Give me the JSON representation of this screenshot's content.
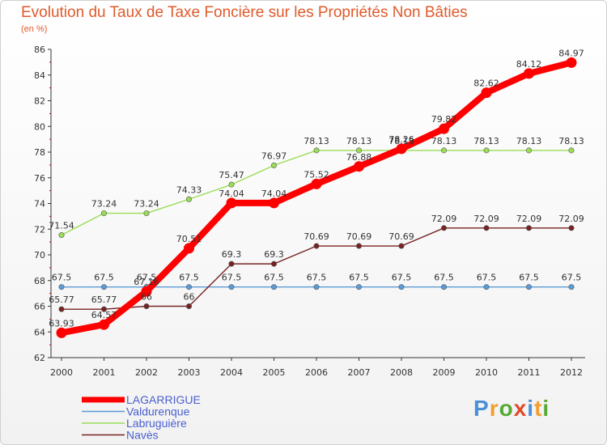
{
  "chart_data": {
    "type": "line",
    "title": "Evolution du Taux de Taxe Foncière sur les Propriétés Non Bâties",
    "ylabel": "(en %)",
    "xlabel": "",
    "categories": [
      "2000",
      "2001",
      "2002",
      "2003",
      "2004",
      "2005",
      "2006",
      "2007",
      "2008",
      "2009",
      "2010",
      "2011",
      "2012"
    ],
    "ylim": [
      62,
      86
    ],
    "yticks": [
      62,
      64,
      66,
      68,
      70,
      72,
      74,
      76,
      78,
      80,
      82,
      84,
      86
    ],
    "grid": false,
    "legend_position": "bottom-left",
    "series": [
      {
        "name": "LAGARRIGUE",
        "color": "#ff0000",
        "values": [
          63.93,
          64.57,
          67.16,
          70.51,
          74.04,
          74.04,
          75.52,
          76.88,
          78.26,
          79.82,
          82.62,
          84.12,
          84.97
        ],
        "labels": [
          "63.93",
          "64.57",
          "67.16",
          "70.51",
          "74.04",
          "74.04",
          "75.52",
          "76.88",
          "78.26",
          "79.82",
          "82.62",
          "84.12",
          "84.97"
        ]
      },
      {
        "name": "Valdurenque",
        "color": "#5b9bd5",
        "values": [
          67.5,
          67.5,
          67.5,
          67.5,
          67.5,
          67.5,
          67.5,
          67.5,
          67.5,
          67.5,
          67.5,
          67.5,
          67.5
        ],
        "labels": [
          "67.5",
          "67.5",
          "67.5",
          "67.5",
          "67.5",
          "67.5",
          "67.5",
          "67.5",
          "67.5",
          "67.5",
          "67.5",
          "67.5",
          "67.5"
        ]
      },
      {
        "name": "Labruguière",
        "color": "#99dd55",
        "values": [
          71.54,
          73.24,
          73.24,
          74.33,
          75.47,
          76.97,
          78.13,
          78.13,
          78.13,
          78.13,
          78.13,
          78.13,
          78.13
        ],
        "labels": [
          "71.54",
          "73.24",
          "73.24",
          "74.33",
          "75.47",
          "76.97",
          "78.13",
          "78.13",
          "78.13",
          "78.13",
          "78.13",
          "78.13",
          "78.13"
        ]
      },
      {
        "name": "Navès",
        "color": "#772222",
        "values": [
          65.77,
          65.77,
          66,
          66,
          69.3,
          69.3,
          70.69,
          70.69,
          70.69,
          72.09,
          72.09,
          72.09,
          72.09
        ],
        "labels": [
          "65.77",
          "65.77",
          "66",
          "66",
          "69.3",
          "69.3",
          "70.69",
          "70.69",
          "70.69",
          "72.09",
          "72.09",
          "72.09",
          "72.09"
        ]
      }
    ]
  },
  "logo": {
    "text": "Proxiti",
    "letter_colors": [
      "#4a90d9",
      "#f0a030",
      "#55aa33",
      "#e04a2a",
      "#4a90d9",
      "#f0a030",
      "#55aa33"
    ]
  }
}
